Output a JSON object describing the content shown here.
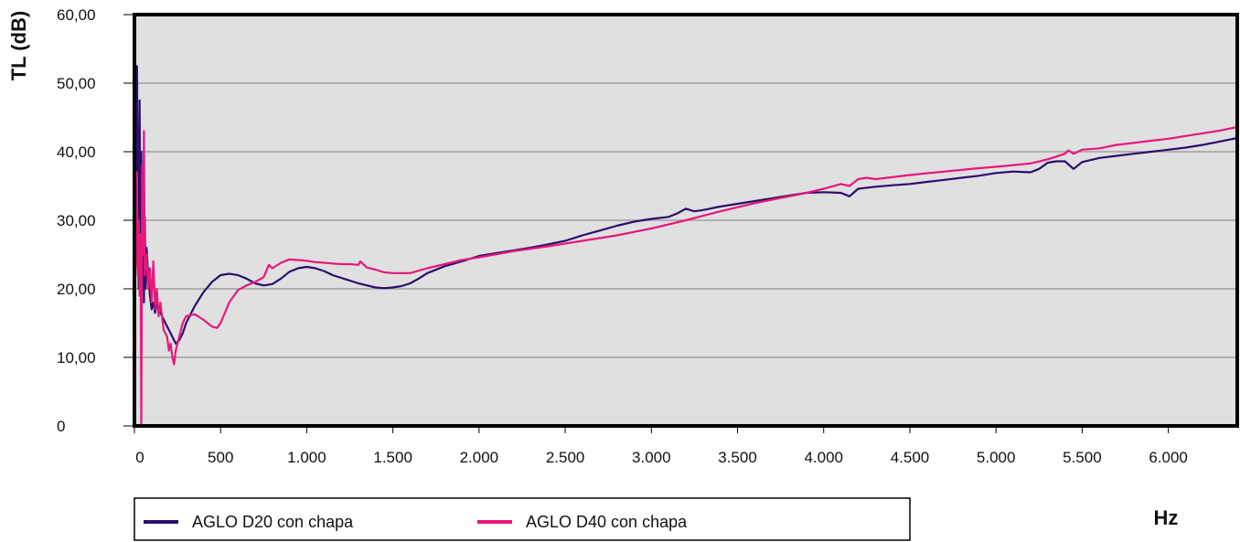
{
  "chart_data": {
    "type": "line",
    "title": "",
    "ylabel": "TL (dB)",
    "xlabel": "Hz",
    "xlim": [
      0,
      6400
    ],
    "ylim": [
      0,
      60
    ],
    "grid": "horizontal",
    "legend_position": "bottom-left",
    "y_ticks": [
      0,
      10,
      20,
      30,
      40,
      50,
      60
    ],
    "y_tick_labels": [
      "0",
      "10,00",
      "20,00",
      "30,00",
      "40,00",
      "50,00",
      "60,00"
    ],
    "x_ticks": [
      0,
      500,
      1000,
      1500,
      2000,
      2500,
      3000,
      3500,
      4000,
      4500,
      5000,
      5500,
      6000
    ],
    "x_tick_labels": [
      "0",
      "500",
      "1.000",
      "1.500",
      "2.000",
      "2.500",
      "3.000",
      "3.500",
      "4.000",
      "4.500",
      "5.000",
      "5.500",
      "6.000"
    ],
    "colors": {
      "plot_background": "#e0e0e0",
      "gridline": "#a0a0a0",
      "frame": "#000000"
    },
    "series": [
      {
        "name": "AGLO D20 con chapa",
        "color": "#2a0f6e",
        "x": [
          0,
          8,
          15,
          20,
          25,
          30,
          35,
          40,
          45,
          50,
          55,
          60,
          65,
          70,
          80,
          90,
          100,
          110,
          120,
          130,
          140,
          160,
          180,
          200,
          220,
          240,
          260,
          280,
          300,
          350,
          400,
          450,
          500,
          550,
          600,
          650,
          700,
          750,
          800,
          850,
          900,
          950,
          1000,
          1050,
          1100,
          1150,
          1200,
          1250,
          1300,
          1350,
          1400,
          1450,
          1500,
          1550,
          1600,
          1650,
          1700,
          1800,
          1900,
          2000,
          2100,
          2200,
          2300,
          2400,
          2500,
          2600,
          2700,
          2800,
          2900,
          3000,
          3100,
          3150,
          3200,
          3250,
          3300,
          3400,
          3500,
          3600,
          3700,
          3800,
          3900,
          4000,
          4100,
          4150,
          4200,
          4300,
          4400,
          4500,
          4600,
          4700,
          4800,
          4900,
          5000,
          5100,
          5200,
          5250,
          5300,
          5350,
          5400,
          5450,
          5500,
          5600,
          5700,
          5800,
          5900,
          6000,
          6100,
          6200,
          6300,
          6400
        ],
        "y": [
          7,
          30,
          52.5,
          35,
          20,
          47.5,
          25,
          40,
          22,
          30,
          18,
          30.5,
          20,
          26,
          22,
          19,
          17,
          18,
          16.5,
          18,
          17,
          16,
          15,
          14,
          13,
          12,
          12.5,
          13.5,
          15,
          17.5,
          19.5,
          21,
          22,
          22.2,
          22,
          21.5,
          20.8,
          20.5,
          20.7,
          21.5,
          22.5,
          23,
          23.2,
          23,
          22.6,
          22,
          21.6,
          21.2,
          20.8,
          20.5,
          20.2,
          20.1,
          20.2,
          20.4,
          20.8,
          21.5,
          22.3,
          23.3,
          24,
          24.8,
          25.2,
          25.6,
          26,
          26.5,
          27,
          27.8,
          28.5,
          29.2,
          29.8,
          30.2,
          30.5,
          31,
          31.7,
          31.3,
          31.5,
          32,
          32.4,
          32.8,
          33.2,
          33.6,
          34,
          34.1,
          34,
          33.5,
          34.6,
          34.9,
          35.1,
          35.3,
          35.6,
          35.9,
          36.2,
          36.5,
          36.9,
          37.1,
          37,
          37.5,
          38.4,
          38.6,
          38.6,
          37.5,
          38.5,
          39.1,
          39.4,
          39.7,
          40,
          40.3,
          40.6,
          41,
          41.5,
          42
        ]
      },
      {
        "name": "AGLO D40 con chapa",
        "color": "#e8177a",
        "x": [
          0,
          10,
          15,
          20,
          25,
          30,
          35,
          40,
          45,
          50,
          55,
          60,
          70,
          80,
          90,
          100,
          110,
          120,
          130,
          140,
          150,
          170,
          190,
          200,
          210,
          220,
          230,
          240,
          260,
          280,
          300,
          350,
          400,
          450,
          480,
          500,
          550,
          600,
          650,
          700,
          750,
          780,
          800,
          850,
          900,
          950,
          1000,
          1050,
          1100,
          1150,
          1200,
          1250,
          1300,
          1310,
          1350,
          1400,
          1450,
          1500,
          1550,
          1600,
          1700,
          1800,
          1900,
          2000,
          2200,
          2400,
          2600,
          2800,
          3000,
          3200,
          3400,
          3600,
          3700,
          3800,
          3900,
          4000,
          4100,
          4150,
          4200,
          4250,
          4300,
          4500,
          4700,
          4900,
          5000,
          5200,
          5300,
          5350,
          5400,
          5420,
          5450,
          5500,
          5600,
          5700,
          5800,
          5900,
          6000,
          6100,
          6200,
          6300,
          6400
        ],
        "y": [
          20,
          25,
          37,
          22,
          30,
          19,
          28,
          0,
          38,
          25,
          43,
          22,
          25,
          20,
          23,
          18,
          24,
          17,
          20,
          16,
          18,
          14,
          13,
          11,
          12,
          10,
          9,
          11,
          13,
          15,
          16,
          16.3,
          15.5,
          14.5,
          14.3,
          15,
          18,
          19.8,
          20.5,
          21,
          21.7,
          23.5,
          23,
          23.8,
          24.3,
          24.2,
          24.1,
          23.9,
          23.8,
          23.7,
          23.6,
          23.6,
          23.5,
          24,
          23.1,
          22.8,
          22.4,
          22.3,
          22.3,
          22.3,
          23,
          23.6,
          24.2,
          24.6,
          25.5,
          26.2,
          27,
          27.8,
          28.8,
          30,
          31.3,
          32.5,
          33,
          33.5,
          34,
          34.6,
          35.3,
          35,
          36,
          36.2,
          36,
          36.6,
          37.1,
          37.6,
          37.8,
          38.3,
          38.9,
          39.3,
          39.7,
          40.2,
          39.7,
          40.3,
          40.5,
          41,
          41.3,
          41.6,
          41.9,
          42.3,
          42.7,
          43.1,
          43.6
        ]
      }
    ]
  }
}
